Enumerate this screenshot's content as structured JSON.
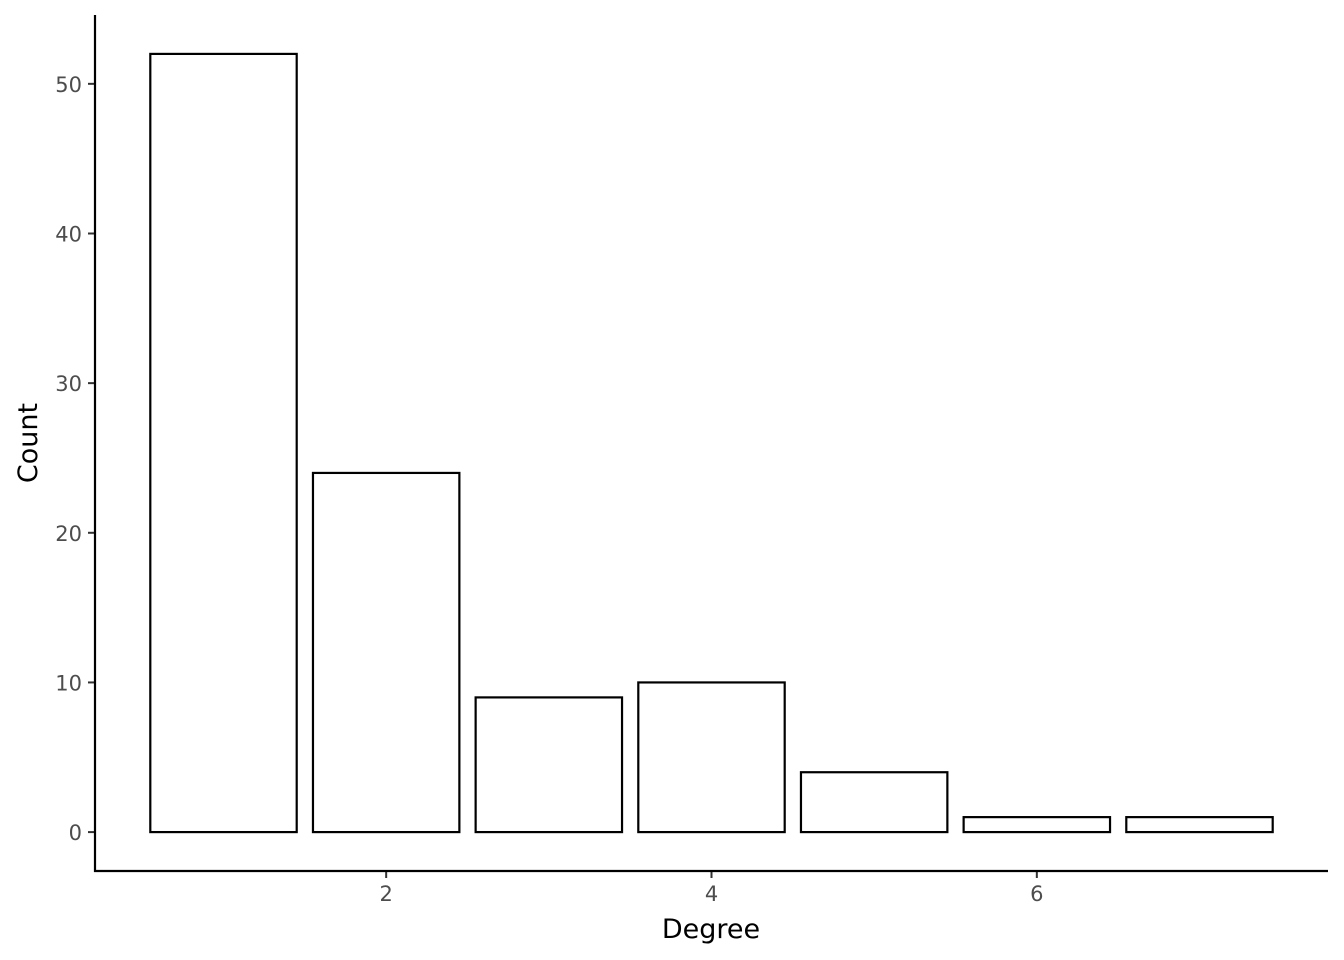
{
  "chart_data": {
    "type": "bar",
    "x": [
      1,
      2,
      3,
      4,
      5,
      6,
      7
    ],
    "values": [
      52,
      24,
      9,
      10,
      4,
      1,
      1
    ],
    "bar_width": 0.9,
    "fill": "#ffffff",
    "stroke": "#000000",
    "xlabel": "Degree",
    "ylabel": "Count",
    "xlim": [
      0.21,
      7.79
    ],
    "xticks": [
      2,
      4,
      6
    ],
    "ylim": [
      -2.6,
      54.6
    ],
    "yticks": [
      0,
      10,
      20,
      30,
      40,
      50
    ],
    "grid": false
  }
}
